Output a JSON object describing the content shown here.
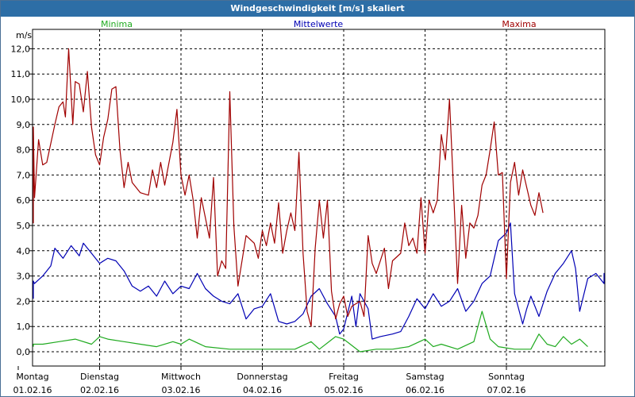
{
  "window": {
    "title": "Windgeschwindigkeit [m/s] skaliert"
  },
  "chart_data": {
    "type": "line",
    "title": "Windgeschwindigkeit [m/s] skaliert",
    "ylabel": "m/s",
    "ylim": [
      0,
      12.5
    ],
    "y_ticks": [
      "0,0",
      "1,0",
      "2,0",
      "3,0",
      "4,0",
      "5,0",
      "6,0",
      "7,0",
      "8,0",
      "9,0",
      "10,0",
      "11,0",
      "12,0"
    ],
    "x_days": [
      {
        "day": "Montag",
        "date": "01.02.16"
      },
      {
        "day": "Dienstag",
        "date": "02.02.16"
      },
      {
        "day": "Mittwoch",
        "date": "03.02.16"
      },
      {
        "day": "Donnerstag",
        "date": "04.02.16"
      },
      {
        "day": "Freitag",
        "date": "05.02.16"
      },
      {
        "day": "Samstag",
        "date": "06.02.16"
      },
      {
        "day": "Sonntag",
        "date": "07.02.16"
      }
    ],
    "xlim_days": [
      0,
      7
    ],
    "grid": true,
    "series": [
      {
        "name": "Minima",
        "color": "#1faa1f",
        "points": [
          [
            0,
            0.2
          ],
          [
            0.1,
            0.3
          ],
          [
            0.3,
            0.3
          ],
          [
            0.5,
            0.4
          ],
          [
            0.7,
            0.5
          ],
          [
            0.9,
            0.3
          ],
          [
            1.0,
            0.6
          ],
          [
            1.1,
            0.5
          ],
          [
            1.3,
            0.4
          ],
          [
            1.5,
            0.3
          ],
          [
            1.7,
            0.2
          ],
          [
            1.9,
            0.4
          ],
          [
            2.0,
            0.3
          ],
          [
            2.1,
            0.5
          ],
          [
            2.3,
            0.2
          ],
          [
            2.6,
            0.1
          ],
          [
            3.0,
            0.1
          ],
          [
            3.4,
            0.1
          ],
          [
            3.6,
            0.4
          ],
          [
            3.7,
            0.1
          ],
          [
            3.9,
            0.6
          ],
          [
            4.0,
            0.5
          ],
          [
            4.2,
            0.0
          ],
          [
            4.4,
            0.1
          ],
          [
            4.6,
            0.1
          ],
          [
            4.8,
            0.2
          ],
          [
            5.0,
            0.5
          ],
          [
            5.1,
            0.2
          ],
          [
            5.2,
            0.3
          ],
          [
            5.4,
            0.1
          ],
          [
            5.6,
            0.4
          ],
          [
            5.7,
            1.6
          ],
          [
            5.8,
            0.5
          ],
          [
            5.9,
            0.2
          ],
          [
            6.1,
            0.1
          ],
          [
            6.3,
            0.1
          ],
          [
            6.4,
            0.7
          ],
          [
            6.5,
            0.3
          ],
          [
            6.6,
            0.2
          ],
          [
            6.7,
            0.6
          ],
          [
            6.8,
            0.3
          ],
          [
            6.9,
            0.5
          ],
          [
            7.0,
            0.2
          ]
        ]
      },
      {
        "name": "Mittelwerte",
        "color": "#0000b4",
        "points": [
          [
            0,
            2.1
          ],
          [
            0.1,
            2.8
          ],
          [
            0.2,
            2.7
          ],
          [
            0.3,
            3.0
          ],
          [
            0.4,
            3.4
          ],
          [
            0.45,
            4.1
          ],
          [
            0.55,
            3.7
          ],
          [
            0.65,
            4.2
          ],
          [
            0.75,
            3.8
          ],
          [
            0.8,
            4.3
          ],
          [
            0.9,
            3.9
          ],
          [
            1.0,
            3.5
          ],
          [
            1.1,
            3.7
          ],
          [
            1.2,
            3.6
          ],
          [
            1.3,
            3.2
          ],
          [
            1.4,
            2.6
          ],
          [
            1.5,
            2.4
          ],
          [
            1.6,
            2.6
          ],
          [
            1.7,
            2.2
          ],
          [
            1.8,
            2.8
          ],
          [
            1.9,
            2.3
          ],
          [
            2.0,
            2.6
          ],
          [
            2.1,
            2.5
          ],
          [
            2.2,
            3.1
          ],
          [
            2.3,
            2.5
          ],
          [
            2.4,
            2.2
          ],
          [
            2.5,
            2.0
          ],
          [
            2.6,
            1.9
          ],
          [
            2.7,
            2.3
          ],
          [
            2.8,
            1.3
          ],
          [
            2.9,
            1.7
          ],
          [
            3.0,
            1.8
          ],
          [
            3.1,
            2.3
          ],
          [
            3.2,
            1.2
          ],
          [
            3.3,
            1.1
          ],
          [
            3.4,
            1.2
          ],
          [
            3.5,
            1.5
          ],
          [
            3.6,
            2.2
          ],
          [
            3.7,
            2.5
          ],
          [
            3.8,
            1.9
          ],
          [
            3.9,
            1.4
          ],
          [
            3.95,
            0.7
          ],
          [
            4.0,
            0.9
          ],
          [
            4.1,
            2.2
          ],
          [
            4.15,
            1.0
          ],
          [
            4.2,
            2.3
          ],
          [
            4.3,
            1.7
          ],
          [
            4.35,
            0.5
          ],
          [
            4.45,
            0.6
          ],
          [
            4.6,
            0.7
          ],
          [
            4.7,
            0.8
          ],
          [
            4.8,
            1.4
          ],
          [
            4.9,
            2.1
          ],
          [
            5.0,
            1.7
          ],
          [
            5.1,
            2.3
          ],
          [
            5.2,
            1.8
          ],
          [
            5.3,
            2.0
          ],
          [
            5.4,
            2.5
          ],
          [
            5.5,
            1.6
          ],
          [
            5.6,
            2.0
          ],
          [
            5.7,
            2.7
          ],
          [
            5.8,
            3.0
          ],
          [
            5.9,
            4.4
          ],
          [
            6.0,
            4.7
          ],
          [
            6.05,
            5.1
          ],
          [
            6.1,
            2.3
          ],
          [
            6.2,
            1.1
          ],
          [
            6.25,
            1.7
          ],
          [
            6.3,
            2.2
          ],
          [
            6.4,
            1.4
          ],
          [
            6.5,
            2.4
          ],
          [
            6.6,
            3.1
          ],
          [
            6.7,
            3.5
          ],
          [
            6.8,
            4.0
          ],
          [
            6.85,
            3.3
          ],
          [
            6.9,
            1.6
          ],
          [
            7.0,
            2.9
          ],
          [
            7.1,
            3.1
          ],
          [
            7.2,
            2.7
          ],
          [
            7.25,
            3.1
          ],
          [
            7.3,
            2.7
          ]
        ]
      },
      {
        "name": "Maxima",
        "color": "#a00000",
        "points": [
          [
            0,
            5.9
          ],
          [
            0.05,
            5.1
          ],
          [
            0.12,
            8.9
          ],
          [
            0.2,
            6.1
          ],
          [
            0.25,
            8.4
          ],
          [
            0.3,
            7.4
          ],
          [
            0.35,
            7.5
          ],
          [
            0.45,
            9.0
          ],
          [
            0.5,
            9.7
          ],
          [
            0.55,
            9.9
          ],
          [
            0.58,
            9.3
          ],
          [
            0.62,
            12.0
          ],
          [
            0.67,
            9.0
          ],
          [
            0.7,
            10.7
          ],
          [
            0.75,
            10.6
          ],
          [
            0.8,
            9.5
          ],
          [
            0.85,
            11.1
          ],
          [
            0.9,
            8.9
          ],
          [
            0.95,
            7.8
          ],
          [
            1.0,
            7.4
          ],
          [
            1.05,
            8.5
          ],
          [
            1.1,
            9.2
          ],
          [
            1.15,
            10.4
          ],
          [
            1.2,
            10.5
          ],
          [
            1.25,
            8.0
          ],
          [
            1.3,
            6.5
          ],
          [
            1.35,
            7.5
          ],
          [
            1.4,
            6.7
          ],
          [
            1.5,
            6.3
          ],
          [
            1.6,
            6.2
          ],
          [
            1.65,
            7.2
          ],
          [
            1.7,
            6.5
          ],
          [
            1.75,
            7.5
          ],
          [
            1.8,
            6.6
          ],
          [
            1.9,
            8.3
          ],
          [
            1.95,
            9.6
          ],
          [
            2.0,
            7.0
          ],
          [
            2.05,
            6.2
          ],
          [
            2.1,
            7.0
          ],
          [
            2.15,
            6.0
          ],
          [
            2.2,
            4.5
          ],
          [
            2.25,
            6.1
          ],
          [
            2.3,
            5.3
          ],
          [
            2.35,
            4.5
          ],
          [
            2.4,
            6.9
          ],
          [
            2.45,
            3.0
          ],
          [
            2.5,
            3.6
          ],
          [
            2.55,
            3.3
          ],
          [
            2.6,
            10.3
          ],
          [
            2.65,
            5.0
          ],
          [
            2.7,
            2.6
          ],
          [
            2.8,
            4.6
          ],
          [
            2.9,
            4.3
          ],
          [
            2.95,
            3.7
          ],
          [
            3.0,
            4.8
          ],
          [
            3.05,
            4.2
          ],
          [
            3.1,
            5.1
          ],
          [
            3.15,
            4.3
          ],
          [
            3.2,
            5.9
          ],
          [
            3.25,
            3.9
          ],
          [
            3.3,
            4.8
          ],
          [
            3.35,
            5.5
          ],
          [
            3.4,
            4.8
          ],
          [
            3.45,
            7.9
          ],
          [
            3.5,
            3.9
          ],
          [
            3.55,
            1.6
          ],
          [
            3.6,
            1.0
          ],
          [
            3.65,
            4.1
          ],
          [
            3.7,
            6.0
          ],
          [
            3.75,
            4.5
          ],
          [
            3.8,
            6.0
          ],
          [
            3.85,
            2.4
          ],
          [
            3.9,
            1.3
          ],
          [
            3.95,
            1.9
          ],
          [
            4.0,
            2.2
          ],
          [
            4.05,
            1.4
          ],
          [
            4.1,
            1.8
          ],
          [
            4.2,
            2.0
          ],
          [
            4.25,
            1.4
          ],
          [
            4.3,
            4.6
          ],
          [
            4.35,
            3.5
          ],
          [
            4.4,
            3.1
          ],
          [
            4.5,
            4.1
          ],
          [
            4.55,
            2.5
          ],
          [
            4.6,
            3.6
          ],
          [
            4.7,
            3.9
          ],
          [
            4.75,
            5.1
          ],
          [
            4.8,
            4.2
          ],
          [
            4.85,
            4.5
          ],
          [
            4.9,
            3.9
          ],
          [
            4.95,
            6.1
          ],
          [
            5.0,
            3.9
          ],
          [
            5.05,
            6.0
          ],
          [
            5.1,
            5.5
          ],
          [
            5.15,
            6.0
          ],
          [
            5.2,
            8.6
          ],
          [
            5.25,
            7.6
          ],
          [
            5.3,
            10.0
          ],
          [
            5.35,
            6.4
          ],
          [
            5.4,
            2.7
          ],
          [
            5.45,
            5.8
          ],
          [
            5.5,
            3.7
          ],
          [
            5.55,
            5.1
          ],
          [
            5.6,
            4.9
          ],
          [
            5.65,
            5.4
          ],
          [
            5.7,
            6.6
          ],
          [
            5.75,
            7.0
          ],
          [
            5.8,
            8.0
          ],
          [
            5.85,
            9.1
          ],
          [
            5.9,
            7.0
          ],
          [
            5.95,
            7.1
          ],
          [
            6.0,
            2.9
          ],
          [
            6.05,
            6.7
          ],
          [
            6.1,
            7.5
          ],
          [
            6.15,
            6.2
          ],
          [
            6.2,
            7.2
          ],
          [
            6.3,
            5.8
          ],
          [
            6.35,
            5.4
          ],
          [
            6.4,
            6.3
          ],
          [
            6.45,
            5.5
          ]
        ]
      }
    ]
  }
}
